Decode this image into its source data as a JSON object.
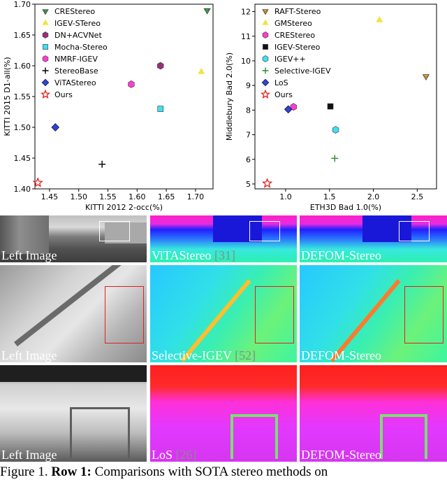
{
  "chart_data": [
    {
      "type": "scatter",
      "xlabel": "KITTI 2012 2-occ(%)",
      "ylabel": "KITTI 2015 D1-all(%)",
      "xlim": [
        1.425,
        1.73
      ],
      "ylim": [
        1.4,
        1.7
      ],
      "xticks": [
        "1.45",
        "1.50",
        "1.55",
        "1.60",
        "1.65",
        "1.70"
      ],
      "yticks": [
        "1.40",
        "1.45",
        "1.50",
        "1.55",
        "1.60",
        "1.65",
        "1.70"
      ],
      "legend_position": "upper-left",
      "series": [
        {
          "name": "CREStereo",
          "marker": "tri-down",
          "color": "#3cb44b",
          "x": [
            1.72
          ],
          "y": [
            1.69
          ]
        },
        {
          "name": "IGEV-STereo",
          "marker": "triangle-up",
          "color": "#f0e442",
          "x": [
            1.71
          ],
          "y": [
            1.59
          ]
        },
        {
          "name": "DN+ACVNet",
          "marker": "hexagon",
          "color": "#9b2d7e",
          "x": [
            1.64
          ],
          "y": [
            1.6
          ]
        },
        {
          "name": "Mocha-Stereo",
          "marker": "square",
          "color": "#40e0f0",
          "x": [
            1.64
          ],
          "y": [
            1.53
          ]
        },
        {
          "name": "NMRF-IGEV",
          "marker": "hexagon",
          "color": "#ff3dce",
          "x": [
            1.59
          ],
          "y": [
            1.57
          ]
        },
        {
          "name": "StereoBase",
          "marker": "plus",
          "color": "#000000",
          "x": [
            1.54
          ],
          "y": [
            1.44
          ]
        },
        {
          "name": "ViTAStereo",
          "marker": "diamond",
          "color": "#2f44d8",
          "x": [
            1.46
          ],
          "y": [
            1.5
          ]
        },
        {
          "name": "Ours",
          "marker": "star",
          "color": "#e02020",
          "x": [
            1.43
          ],
          "y": [
            1.41
          ]
        }
      ]
    },
    {
      "type": "scatter",
      "xlabel": "ETH3D Bad 1.0(%)",
      "ylabel": "Middlebury Bad 2.0(%)",
      "xlim": [
        0.65,
        2.72
      ],
      "ylim": [
        4.8,
        12.3
      ],
      "xticks": [
        "0.5",
        "1.0",
        "1.5",
        "2.0",
        "2.5"
      ],
      "yticks": [
        "5",
        "6",
        "7",
        "8",
        "9",
        "10",
        "11",
        "12"
      ],
      "legend_position": "upper-left",
      "series": [
        {
          "name": "RAFT-Stereo",
          "marker": "tri-down",
          "color": "#f5a623",
          "x": [
            2.6
          ],
          "y": [
            9.37
          ]
        },
        {
          "name": "GMStereo",
          "marker": "triangle-up",
          "color": "#f0e442",
          "x": [
            2.07
          ],
          "y": [
            11.65
          ]
        },
        {
          "name": "CREStereo",
          "marker": "hexagon",
          "color": "#ff3dce",
          "x": [
            1.09
          ],
          "y": [
            8.13
          ]
        },
        {
          "name": "IGEV-Stereo",
          "marker": "square",
          "color": "#111111",
          "x": [
            1.51
          ],
          "y": [
            8.15
          ]
        },
        {
          "name": "IGEV++",
          "marker": "hexagon",
          "color": "#40e0f0",
          "x": [
            1.57
          ],
          "y": [
            7.2
          ]
        },
        {
          "name": "Selective-IGEV",
          "marker": "plus",
          "color": "#2e8b2e",
          "x": [
            1.56
          ],
          "y": [
            6.04
          ]
        },
        {
          "name": "LoS",
          "marker": "diamond",
          "color": "#2f44d8",
          "x": [
            1.03
          ],
          "y": [
            8.03
          ]
        },
        {
          "name": "Ours",
          "marker": "star",
          "color": "#e02020",
          "x": [
            0.79
          ],
          "y": [
            5.02
          ]
        }
      ]
    }
  ],
  "figure": {
    "rows": [
      {
        "left": "Left Image",
        "mid": "ViTAStereo",
        "mid_cite": "[31]",
        "right": "DEFOM-Stereo"
      },
      {
        "left": "Left Image",
        "mid": "Selective-IGEV",
        "mid_cite": "[52]",
        "right": "DEFOM-Stereo"
      },
      {
        "left": "Left Image",
        "mid": "LoS",
        "mid_cite": "[26]",
        "right": "DEFOM-Stereo"
      }
    ]
  },
  "caption": {
    "lead": "Figure 1.",
    "bold": "Row 1:",
    "text": "Comparisons with SOTA stereo methods on"
  }
}
